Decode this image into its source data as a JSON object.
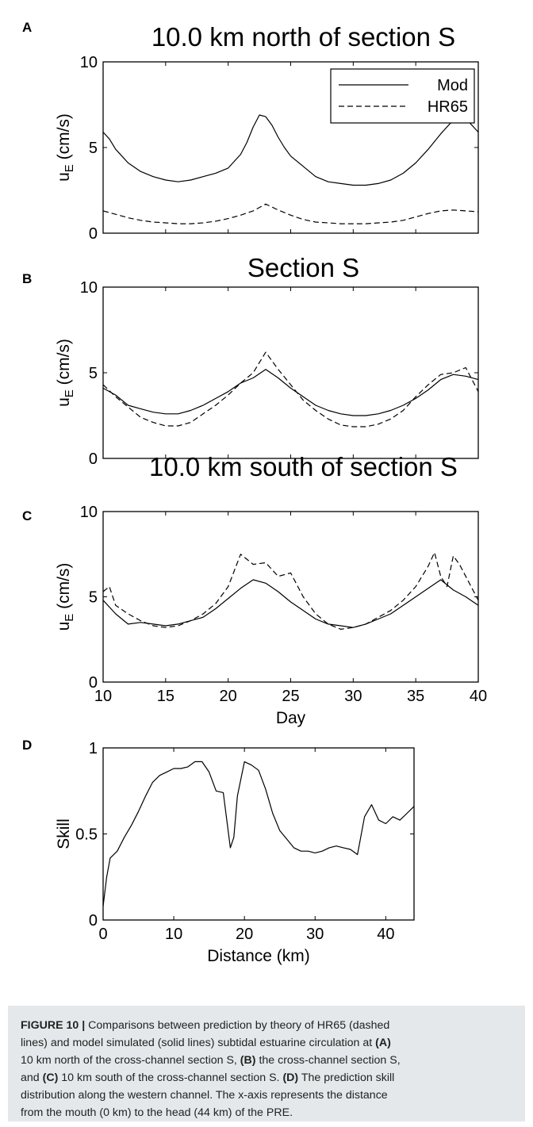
{
  "chart_data": [
    {
      "type": "line",
      "panel_letter": "A",
      "title": "10.0 km north of section S",
      "ylabel": "u_E (cm/s)",
      "xlim": [
        10,
        40
      ],
      "ylim": [
        0,
        10
      ],
      "yticks": [
        0,
        5,
        10
      ],
      "legend": [
        "Mod",
        "HR65"
      ],
      "legend_position": "top-right",
      "series": [
        {
          "name": "Mod",
          "style": "solid",
          "x": [
            10,
            10.5,
            11,
            11.5,
            12,
            13,
            14,
            15,
            16,
            17,
            18,
            19,
            20,
            21,
            21.5,
            22,
            22.5,
            23,
            23.5,
            24,
            24.5,
            25,
            26,
            27,
            28,
            29,
            30,
            31,
            32,
            33,
            34,
            35,
            36,
            37,
            38,
            39,
            40
          ],
          "y": [
            5.9,
            5.5,
            4.9,
            4.5,
            4.1,
            3.6,
            3.3,
            3.1,
            3.0,
            3.1,
            3.3,
            3.5,
            3.8,
            4.6,
            5.3,
            6.2,
            6.9,
            6.8,
            6.3,
            5.6,
            5.0,
            4.5,
            3.9,
            3.3,
            3.0,
            2.9,
            2.8,
            2.8,
            2.9,
            3.1,
            3.5,
            4.1,
            4.9,
            5.8,
            6.6,
            6.7,
            5.9
          ]
        },
        {
          "name": "HR65",
          "style": "dashed",
          "x": [
            10,
            11,
            12,
            13,
            14,
            15,
            16,
            17,
            18,
            19,
            20,
            21,
            22,
            23,
            24,
            25,
            26,
            27,
            28,
            29,
            30,
            31,
            32,
            33,
            34,
            35,
            36,
            37,
            38,
            39,
            40
          ],
          "y": [
            1.3,
            1.1,
            0.9,
            0.75,
            0.65,
            0.6,
            0.55,
            0.55,
            0.6,
            0.7,
            0.85,
            1.05,
            1.3,
            1.7,
            1.35,
            1.05,
            0.8,
            0.65,
            0.6,
            0.55,
            0.55,
            0.55,
            0.6,
            0.65,
            0.75,
            0.95,
            1.15,
            1.3,
            1.35,
            1.3,
            1.25
          ]
        }
      ]
    },
    {
      "type": "line",
      "panel_letter": "B",
      "title": "Section S",
      "ylabel": "u_E (cm/s)",
      "xlim": [
        10,
        40
      ],
      "ylim": [
        0,
        10
      ],
      "yticks": [
        0,
        5,
        10
      ],
      "series": [
        {
          "name": "Mod",
          "style": "solid",
          "x": [
            10,
            11,
            12,
            13,
            14,
            15,
            16,
            17,
            18,
            19,
            20,
            21,
            22,
            23,
            24,
            25,
            26,
            27,
            28,
            29,
            30,
            31,
            32,
            33,
            34,
            35,
            36,
            37,
            38,
            39,
            40
          ],
          "y": [
            4.1,
            3.7,
            3.1,
            2.9,
            2.7,
            2.6,
            2.6,
            2.8,
            3.1,
            3.5,
            3.9,
            4.4,
            4.7,
            5.2,
            4.7,
            4.1,
            3.6,
            3.1,
            2.8,
            2.6,
            2.5,
            2.5,
            2.6,
            2.8,
            3.1,
            3.5,
            4.0,
            4.6,
            4.9,
            4.8,
            4.6
          ]
        },
        {
          "name": "HR65",
          "style": "dashed",
          "x": [
            10,
            11,
            12,
            13,
            14,
            15,
            16,
            17,
            18,
            19,
            20,
            21,
            22,
            23,
            24,
            25,
            26,
            27,
            28,
            29,
            30,
            31,
            32,
            33,
            34,
            35,
            36,
            37,
            38,
            39,
            40
          ],
          "y": [
            4.3,
            3.6,
            3.0,
            2.4,
            2.1,
            1.9,
            1.9,
            2.1,
            2.6,
            3.1,
            3.7,
            4.4,
            5.0,
            6.2,
            5.2,
            4.3,
            3.4,
            2.8,
            2.3,
            1.95,
            1.85,
            1.85,
            2.0,
            2.3,
            2.8,
            3.6,
            4.3,
            4.9,
            5.0,
            5.3,
            3.9
          ]
        }
      ]
    },
    {
      "type": "line",
      "panel_letter": "C",
      "title": "10.0 km south of section S",
      "ylabel": "u_E (cm/s)",
      "xlabel": "Day",
      "xlim": [
        10,
        40
      ],
      "ylim": [
        0,
        10
      ],
      "xticks": [
        10,
        15,
        20,
        25,
        30,
        35,
        40
      ],
      "yticks": [
        0,
        5,
        10
      ],
      "series": [
        {
          "name": "Mod",
          "style": "solid",
          "x": [
            10,
            11,
            12,
            13,
            14,
            15,
            16,
            17,
            18,
            19,
            20,
            21,
            22,
            23,
            24,
            25,
            26,
            27,
            28,
            29,
            30,
            31,
            32,
            33,
            34,
            35,
            36,
            37,
            38,
            39,
            40
          ],
          "y": [
            4.8,
            4.0,
            3.4,
            3.5,
            3.4,
            3.3,
            3.4,
            3.6,
            3.8,
            4.3,
            4.9,
            5.5,
            6.0,
            5.8,
            5.3,
            4.7,
            4.2,
            3.7,
            3.4,
            3.3,
            3.2,
            3.4,
            3.7,
            4.0,
            4.5,
            5.0,
            5.5,
            6.0,
            5.4,
            5.0,
            4.5
          ]
        },
        {
          "name": "HR65",
          "style": "dashed",
          "x": [
            10,
            10.5,
            11,
            12,
            13,
            14,
            15,
            16,
            17,
            18,
            19,
            20,
            21,
            22,
            23,
            24,
            25,
            26,
            27,
            28,
            29,
            30,
            31,
            32,
            33,
            34,
            35,
            36,
            36.5,
            37,
            37.5,
            38,
            38.5,
            39,
            40
          ],
          "y": [
            5.3,
            5.6,
            4.5,
            4.0,
            3.6,
            3.3,
            3.2,
            3.3,
            3.6,
            4.0,
            4.6,
            5.6,
            7.5,
            6.9,
            7.0,
            6.2,
            6.4,
            5.0,
            4.0,
            3.4,
            3.1,
            3.2,
            3.4,
            3.8,
            4.2,
            4.8,
            5.6,
            6.8,
            7.6,
            6.2,
            5.6,
            7.4,
            6.9,
            6.2,
            4.8
          ]
        }
      ]
    },
    {
      "type": "line",
      "panel_letter": "D",
      "title": "",
      "ylabel": "Skill",
      "xlabel": "Distance (km)",
      "xlim": [
        0,
        44
      ],
      "ylim": [
        0,
        1
      ],
      "xticks": [
        0,
        10,
        20,
        30,
        40
      ],
      "yticks": [
        0,
        0.5,
        1
      ],
      "series": [
        {
          "name": "",
          "style": "solid",
          "x": [
            0,
            0.5,
            1,
            2,
            3,
            4,
            5,
            6,
            7,
            8,
            9,
            10,
            11,
            12,
            13,
            14,
            15,
            16,
            17,
            18,
            18.5,
            19,
            20,
            21,
            22,
            23,
            24,
            25,
            26,
            27,
            28,
            29,
            30,
            31,
            32,
            33,
            34,
            35,
            36,
            37,
            38,
            39,
            40,
            41,
            42,
            43,
            44
          ],
          "y": [
            0.08,
            0.25,
            0.36,
            0.4,
            0.48,
            0.55,
            0.63,
            0.72,
            0.8,
            0.84,
            0.86,
            0.88,
            0.88,
            0.89,
            0.92,
            0.92,
            0.86,
            0.75,
            0.74,
            0.42,
            0.48,
            0.72,
            0.92,
            0.9,
            0.87,
            0.76,
            0.62,
            0.52,
            0.47,
            0.42,
            0.4,
            0.4,
            0.39,
            0.4,
            0.42,
            0.43,
            0.42,
            0.41,
            0.38,
            0.6,
            0.67,
            0.58,
            0.56,
            0.6,
            0.58,
            0.62,
            0.66
          ]
        }
      ]
    }
  ],
  "caption": {
    "lines": [
      [
        {
          "b": true,
          "t": "FIGURE 10 |"
        },
        {
          "b": false,
          "t": " Comparisons between prediction by theory of HR65 (dashed"
        }
      ],
      [
        {
          "b": false,
          "t": "lines) and model simulated (solid lines) subtidal estuarine circulation at "
        },
        {
          "b": true,
          "t": "(A)"
        }
      ],
      [
        {
          "b": false,
          "t": "10 km north of the cross-channel section S, "
        },
        {
          "b": true,
          "t": "(B)"
        },
        {
          "b": false,
          "t": " the cross-channel section S,"
        }
      ],
      [
        {
          "b": false,
          "t": "and "
        },
        {
          "b": true,
          "t": "(C)"
        },
        {
          "b": false,
          "t": " 10 km south of the cross-channel section S. "
        },
        {
          "b": true,
          "t": "(D)"
        },
        {
          "b": false,
          "t": " The prediction skill"
        }
      ],
      [
        {
          "b": false,
          "t": "distribution along the western channel. The x-axis represents the distance"
        }
      ],
      [
        {
          "b": false,
          "t": "from the mouth (0 km) to the head (44 km) of the PRE."
        }
      ]
    ]
  }
}
